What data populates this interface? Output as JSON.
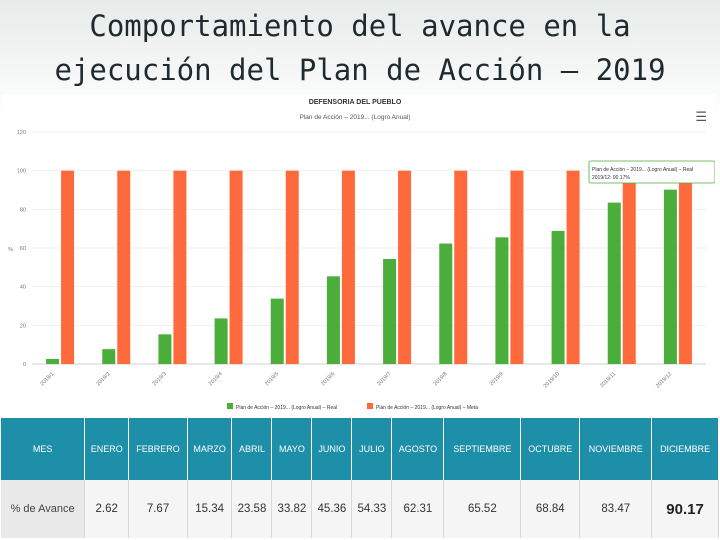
{
  "page": {
    "title_line1": "Comportamiento del avance en la",
    "title_line2": "ejecución del Plan de Acción – 2019"
  },
  "chart_data": {
    "type": "bar",
    "title": "DEFENSORIA DEL PUEBLO",
    "subtitle": "Plan de Acción – 2019... (Logro Anual)",
    "ylim": [
      0,
      120
    ],
    "yticks": [
      0,
      20,
      40,
      60,
      80,
      100,
      120
    ],
    "ylabel": "%",
    "categories": [
      "2019/1",
      "2019/2",
      "2019/3",
      "2019/4",
      "2019/5",
      "2019/6",
      "2019/7",
      "2019/8",
      "2019/9",
      "2019/10",
      "2019/11",
      "2019/12"
    ],
    "series": [
      {
        "name": "Plan de Acción – 2019... (Logro Anual) – Real",
        "color": "#4cae3a",
        "values": [
          2.62,
          7.67,
          15.34,
          23.58,
          33.82,
          45.36,
          54.33,
          62.31,
          65.52,
          68.84,
          83.47,
          90.17
        ]
      },
      {
        "name": "Plan de Acción – 2019... (Logro Anual) – Meta",
        "color": "#ff6a3d",
        "values": [
          100,
          100,
          100,
          100,
          100,
          100,
          100,
          100,
          100,
          100,
          100,
          100
        ]
      }
    ],
    "tooltip": {
      "line1": "Plan de Acción – 2019... (Logro Anual) – Real",
      "line2": "2019/12: 90.17%"
    }
  },
  "table": {
    "row1_label": "MES",
    "months": [
      "ENERO",
      "FEBRERO",
      "MARZO",
      "ABRIL",
      "MAYO",
      "JUNIO",
      "JULIO",
      "AGOSTO",
      "SEPTIEMBRE",
      "OCTUBRE",
      "NOVIEMBRE",
      "DICIEMBRE"
    ],
    "row2_label": "% de Avance",
    "values": [
      "2.62",
      "7.67",
      "15.34",
      "23.58",
      "33.82",
      "45.36",
      "54.33",
      "62.31",
      "65.52",
      "68.84",
      "83.47",
      "90.17"
    ]
  },
  "colors": {
    "header_bg": "#1e8fa8",
    "real": "#4cae3a",
    "meta": "#ff6a3d"
  }
}
